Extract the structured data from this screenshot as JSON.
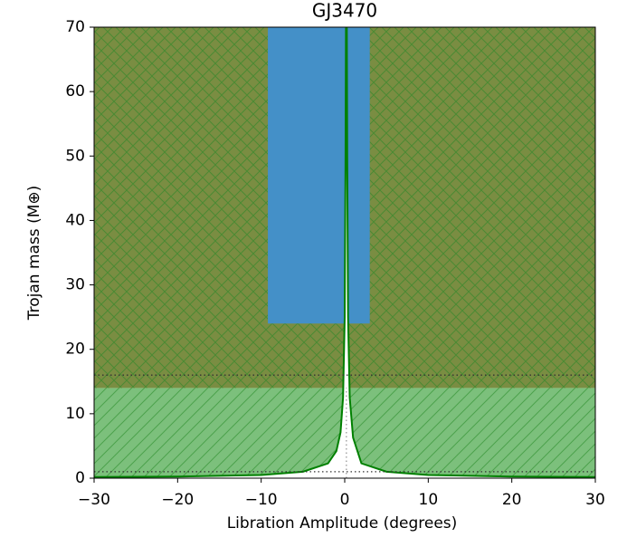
{
  "chart_data": {
    "type": "line",
    "title": "GJ3470",
    "xlabel": "Libration Amplitude (degrees)",
    "ylabel": "Trojan mass (M⊕)",
    "xlim": [
      -30,
      30
    ],
    "ylim": [
      0,
      70
    ],
    "xticks": [
      {
        "value": -30,
        "label": "−30"
      },
      {
        "value": -20,
        "label": "−20"
      },
      {
        "value": -10,
        "label": "−10"
      },
      0,
      10,
      20,
      30
    ],
    "yticks": [
      0,
      10,
      20,
      30,
      40,
      50,
      60,
      70
    ],
    "regions": [
      {
        "x": [
          -30,
          30
        ],
        "y": [
          0,
          14
        ],
        "color": "#7cc07c",
        "hatch": "/"
      },
      {
        "x": [
          -30,
          30
        ],
        "y": [
          14,
          70
        ],
        "color": "#7a8d42",
        "hatch": "x"
      },
      {
        "x": [
          -9.2,
          3.0
        ],
        "y": [
          24,
          70
        ],
        "color": "#4490c8"
      }
    ],
    "hlines": [
      16,
      1
    ],
    "vlines": [
      {
        "x": 0.2,
        "y": [
          0,
          14
        ]
      }
    ],
    "series": [
      {
        "color": "#008000",
        "x": [
          -30,
          -20,
          -10,
          -5,
          -2,
          -1,
          -0.5,
          -0.2,
          0,
          0.1,
          0.15,
          0.2,
          0.25,
          0.3,
          0.4,
          0.6,
          1,
          2,
          5,
          10,
          20,
          30
        ],
        "values": [
          0.17,
          0.25,
          0.5,
          1.0,
          2.3,
          4.2,
          7.1,
          12.5,
          25,
          50,
          70,
          70,
          70,
          50,
          25,
          12.5,
          6.3,
          2.3,
          1.0,
          0.5,
          0.25,
          0.17
        ]
      }
    ]
  }
}
